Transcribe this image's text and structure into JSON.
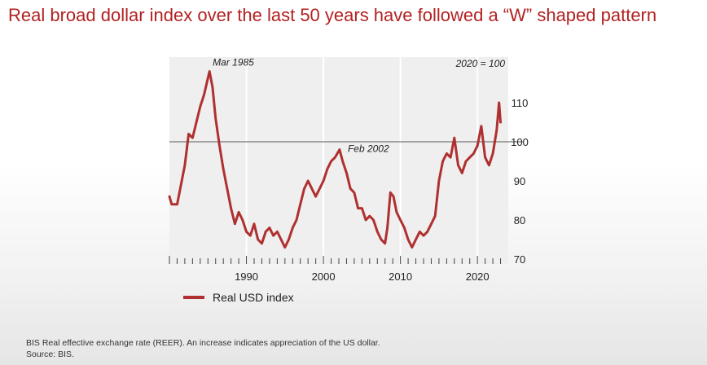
{
  "slide": {
    "title": "Real broad dollar index over the last 50 years have followed a “W” shaped pattern"
  },
  "chart_data": {
    "type": "line",
    "title": "",
    "xlabel": "",
    "ylabel": "",
    "base_note": "2020 = 100",
    "xlim": [
      1980,
      2024
    ],
    "ylim": [
      70,
      120
    ],
    "x_ticks": [
      "1990",
      "2000",
      "2010",
      "2020"
    ],
    "y_ticks": [
      "70",
      "80",
      "90",
      "100",
      "110"
    ],
    "reference_line": 100,
    "grid": "vertical at decade marks",
    "legend_position": "bottom-left",
    "series": [
      {
        "name": "Real USD index",
        "color": "#b03030",
        "x": [
          1980,
          1980.3,
          1981,
          1981.5,
          1982,
          1982.5,
          1983,
          1983.5,
          1984,
          1984.5,
          1985.2,
          1985.6,
          1986,
          1986.5,
          1987,
          1987.5,
          1988,
          1988.5,
          1989,
          1989.5,
          1990,
          1990.5,
          1991,
          1991.5,
          1992,
          1992.5,
          1993,
          1993.5,
          1994,
          1994.5,
          1995,
          1995.5,
          1996,
          1996.5,
          1997,
          1997.5,
          1998,
          1998.5,
          1999,
          1999.5,
          2000,
          2000.5,
          2001,
          2001.5,
          2002.1,
          2002.5,
          2003,
          2003.5,
          2004,
          2004.5,
          2005,
          2005.5,
          2006,
          2006.5,
          2007,
          2007.5,
          2008,
          2008.3,
          2008.7,
          2009.1,
          2009.5,
          2010,
          2010.5,
          2011,
          2011.5,
          2012,
          2012.5,
          2013,
          2013.5,
          2014,
          2014.5,
          2015,
          2015.5,
          2016,
          2016.5,
          2017,
          2017.5,
          2018,
          2018.5,
          2019,
          2019.5,
          2020,
          2020.5,
          2021,
          2021.5,
          2022,
          2022.5,
          2022.8,
          2023
        ],
        "values": [
          86,
          84,
          84,
          89,
          94,
          102,
          101,
          105,
          109,
          112,
          118,
          114,
          106,
          99,
          93,
          88,
          83,
          79,
          82,
          80,
          77,
          76,
          79,
          75,
          74,
          77,
          78,
          76,
          77,
          75,
          73,
          75,
          78,
          80,
          84,
          88,
          90,
          88,
          86,
          88,
          90,
          93,
          95,
          96,
          98,
          95,
          92,
          88,
          87,
          83,
          83,
          80,
          81,
          80,
          77,
          75,
          74,
          78,
          87,
          86,
          82,
          80,
          78,
          75,
          73,
          75,
          77,
          76,
          77,
          79,
          81,
          90,
          95,
          97,
          96,
          101,
          94,
          92,
          95,
          96,
          97,
          99,
          104,
          96,
          94,
          97,
          103,
          110,
          105
        ]
      }
    ],
    "annotations": [
      "Mar 1985",
      "Feb 2002"
    ]
  },
  "footnote": {
    "line1": "BIS Real effective exchange rate (REER). An increase indicates appreciation of the US dollar.",
    "line2": "Source: BIS."
  }
}
